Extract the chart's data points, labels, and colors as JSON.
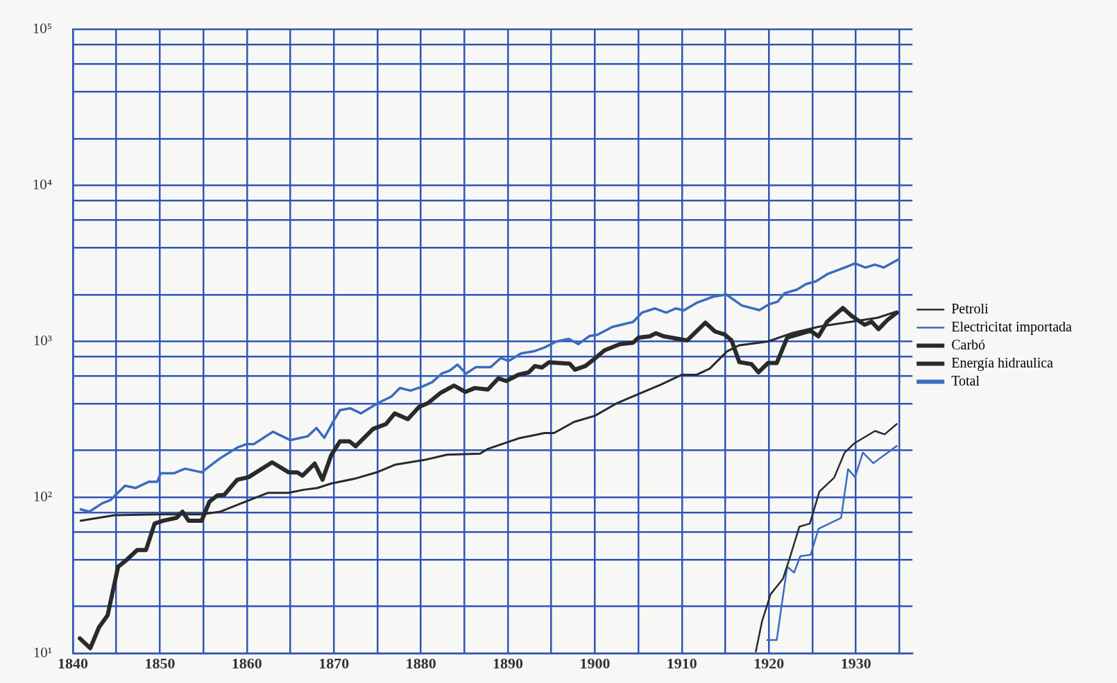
{
  "chart_data": {
    "type": "line",
    "xlim": [
      1840,
      1936.5
    ],
    "xticks": [
      1840,
      {
        "value": 1845,
        "label": null
      },
      1850,
      {
        "value": 1855,
        "label": null
      },
      1860,
      {
        "value": 1865,
        "label": null
      },
      1870,
      {
        "value": 1875,
        "label": null
      },
      1880,
      {
        "value": 1885,
        "label": null
      },
      1890,
      {
        "value": 1895,
        "label": null
      },
      1900,
      {
        "value": 1905,
        "label": null
      },
      1910,
      {
        "value": 1915,
        "label": null
      },
      1920,
      {
        "value": 1925,
        "label": null
      },
      1930,
      {
        "value": 1935,
        "label": null
      }
    ],
    "ylim": [
      10,
      100000
    ],
    "yticks": [
      {
        "value": 10,
        "label": "10¹"
      },
      {
        "value": 20,
        "label": null
      },
      {
        "value": 40,
        "label": null
      },
      {
        "value": 60,
        "label": null
      },
      {
        "value": 80,
        "label": null
      },
      {
        "value": 100,
        "label": "10²"
      },
      {
        "value": 200,
        "label": null
      },
      {
        "value": 400,
        "label": null
      },
      {
        "value": 600,
        "label": null
      },
      {
        "value": 800,
        "label": null
      },
      {
        "value": 1000,
        "label": "10³"
      },
      {
        "value": 2000,
        "label": null
      },
      {
        "value": 4000,
        "label": null
      },
      {
        "value": 6000,
        "label": null
      },
      {
        "value": 8000,
        "label": null
      },
      {
        "value": 10000,
        "label": "10⁴"
      },
      {
        "value": 20000,
        "label": null
      },
      {
        "value": 40000,
        "label": null
      },
      {
        "value": 60000,
        "label": null
      },
      {
        "value": 80000,
        "label": null
      },
      {
        "value": 100000,
        "label": "10⁵"
      }
    ],
    "log": "y",
    "grid": true,
    "legend": "right",
    "marker": "none",
    "line_style": "solid",
    "series": [
      {
        "name": "Petroli",
        "color": "#2a2a2a",
        "x": [
          1918.5,
          1919.2,
          1920.2,
          1921.6,
          1922.4,
          1923.5,
          1924.7,
          1925.8,
          1927.5,
          1928.7,
          1929.8,
          1932.2,
          1933.3,
          1934.7
        ],
        "values": [
          10.3,
          16,
          24,
          30,
          41,
          65,
          68,
          109,
          134,
          194,
          222,
          267,
          254,
          296
        ]
      },
      {
        "name": "Electricitat importada",
        "color": "#3a6bc0",
        "x": [
          1919.8,
          1920.9,
          1922.1,
          1922.9,
          1923.6,
          1924.8,
          1925.7,
          1928.3,
          1929.1,
          1929.9,
          1930.8,
          1932,
          1934.7
        ],
        "values": [
          12.2,
          12.2,
          36,
          33,
          42,
          43,
          63,
          74,
          152,
          135,
          194,
          166,
          214
        ]
      },
      {
        "name": "Carbó",
        "color": "#2a2a2a",
        "x": [
          1840.8,
          1842,
          1843,
          1844,
          1845.2,
          1846,
          1847.4,
          1848.4,
          1849.4,
          1850.4,
          1851.9,
          1852.6,
          1853.3,
          1854.8,
          1855.7,
          1856.6,
          1857.4,
          1858.9,
          1860.2,
          1862.9,
          1864.8,
          1865.8,
          1866.4,
          1867.8,
          1868.7,
          1869.7,
          1870.7,
          1871.8,
          1872.5,
          1874.5,
          1876,
          1877,
          1878.5,
          1879.8,
          1880.8,
          1882.3,
          1883.8,
          1885.1,
          1886.2,
          1887.7,
          1888.9,
          1889.8,
          1891.2,
          1892.4,
          1893.1,
          1893.9,
          1894.7,
          1897.1,
          1897.7,
          1898.9,
          1900,
          1901.1,
          1902.9,
          1904.4,
          1905,
          1906.3,
          1907,
          1907.9,
          1910.6,
          1912.7,
          1913.8,
          1914.9,
          1915.7,
          1916.6,
          1918,
          1918.8,
          1919.9,
          1920.9,
          1922.1,
          1923.8,
          1924.8,
          1925.7,
          1926.7,
          1928.5,
          1929.5,
          1931,
          1931.8,
          1932.6,
          1933.6,
          1934.7
        ],
        "values": [
          12.5,
          10.8,
          14.7,
          17.6,
          36,
          39,
          46,
          46,
          68,
          71,
          74,
          81,
          71,
          71,
          94,
          103,
          104,
          130,
          135,
          168,
          145,
          145,
          138,
          165,
          130,
          187,
          229,
          229,
          213,
          275,
          296,
          346,
          318,
          381,
          402,
          470,
          522,
          475,
          503,
          492,
          580,
          558,
          612,
          634,
          696,
          681,
          735,
          720,
          660,
          696,
          778,
          878,
          963,
          983,
          1058,
          1080,
          1130,
          1080,
          1017,
          1320,
          1160,
          1110,
          1017,
          738,
          716,
          635,
          728,
          728,
          1058,
          1130,
          1170,
          1080,
          1340,
          1640,
          1460,
          1280,
          1340,
          1200,
          1370,
          1530
        ]
      },
      {
        "name": "Energía hidraulica",
        "color": "#2a2a2a",
        "x": [
          1840.9,
          1844.8,
          1850,
          1854.8,
          1856.9,
          1859.2,
          1862.4,
          1864.8,
          1866.5,
          1868.1,
          1869.7,
          1872.4,
          1875.1,
          1877,
          1880.4,
          1883,
          1886.8,
          1887.7,
          1891.2,
          1894.2,
          1895.3,
          1897.6,
          1900,
          1902.6,
          1905.6,
          1907.6,
          1910,
          1911.7,
          1913.2,
          1915.2,
          1916.6,
          1919.9,
          1922.6,
          1925.9,
          1932.5,
          1934.7
        ],
        "values": [
          71,
          77,
          78,
          78,
          81,
          91,
          107,
          107,
          112,
          115,
          123,
          132,
          146,
          162,
          174,
          188,
          191,
          205,
          239,
          259,
          259,
          305,
          334,
          404,
          476,
          529,
          612,
          612,
          670,
          866,
          946,
          1000,
          1130,
          1250,
          1420,
          1560
        ]
      },
      {
        "name": "Total",
        "color": "#3a6bc0",
        "x": [
          1840.9,
          1841.9,
          1843.4,
          1844.3,
          1846,
          1847.2,
          1848.7,
          1849.7,
          1850.1,
          1851.6,
          1852.9,
          1854.8,
          1856.9,
          1858.9,
          1860,
          1860.8,
          1863,
          1865,
          1867,
          1868,
          1868.9,
          1870,
          1870.7,
          1871.9,
          1873.1,
          1875.1,
          1876.6,
          1877.6,
          1878.8,
          1880.1,
          1881.3,
          1882.4,
          1883.3,
          1884.2,
          1885.2,
          1886.3,
          1888,
          1889.2,
          1890.1,
          1891.5,
          1893,
          1894.2,
          1895.6,
          1897,
          1898.1,
          1899.4,
          1900.3,
          1902,
          1904.4,
          1905.4,
          1906.9,
          1908.2,
          1909.3,
          1910.2,
          1911.7,
          1913.6,
          1915.1,
          1916.9,
          1918.9,
          1920,
          1921,
          1921.8,
          1923.2,
          1924.3,
          1925.4,
          1926.7,
          1928.7,
          1929.9,
          1931.1,
          1932.2,
          1933.2,
          1934.8
        ],
        "values": [
          84,
          81,
          92,
          96,
          119,
          115,
          126,
          126,
          143,
          143,
          153,
          145,
          178,
          209,
          220,
          220,
          264,
          233,
          247,
          279,
          241,
          312,
          363,
          373,
          346,
          404,
          443,
          504,
          484,
          512,
          549,
          623,
          650,
          711,
          623,
          684,
          684,
          784,
          750,
          838,
          866,
          915,
          1000,
          1040,
          962,
          1085,
          1105,
          1240,
          1335,
          1530,
          1630,
          1530,
          1630,
          1580,
          1770,
          1940,
          2000,
          1700,
          1590,
          1730,
          1800,
          2040,
          2150,
          2340,
          2430,
          2700,
          2980,
          3170,
          2980,
          3110,
          2980,
          3340
        ]
      }
    ]
  }
}
